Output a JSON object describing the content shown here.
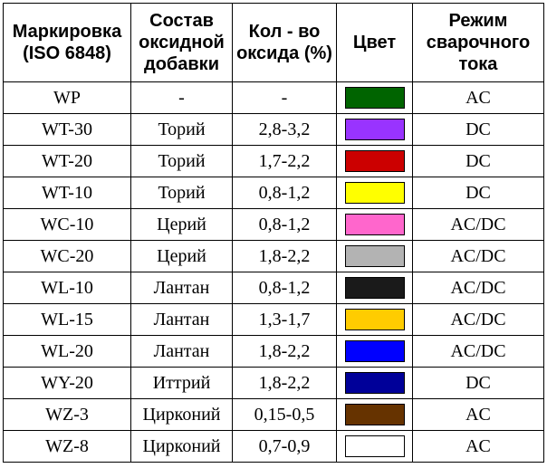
{
  "table": {
    "headers": [
      "Маркировка (ISO 6848)",
      "Состав оксидной добавки",
      "Кол - во оксида (%)",
      "Цвет",
      "Режим сварочного тока"
    ],
    "rows": [
      {
        "marking": "WP",
        "additive": "-",
        "oxide_pct": "-",
        "color_hex": "#006400",
        "current": "AC"
      },
      {
        "marking": "WT-30",
        "additive": "Торий",
        "oxide_pct": "2,8-3,2",
        "color_hex": "#9933ff",
        "current": "DC"
      },
      {
        "marking": "WT-20",
        "additive": "Торий",
        "oxide_pct": "1,7-2,2",
        "color_hex": "#cc0000",
        "current": "DC"
      },
      {
        "marking": "WT-10",
        "additive": "Торий",
        "oxide_pct": "0,8-1,2",
        "color_hex": "#ffff00",
        "current": "DC"
      },
      {
        "marking": "WC-10",
        "additive": "Церий",
        "oxide_pct": "0,8-1,2",
        "color_hex": "#ff66cc",
        "current": "AC/DC"
      },
      {
        "marking": "WC-20",
        "additive": "Церий",
        "oxide_pct": "1,8-2,2",
        "color_hex": "#b3b3b3",
        "current": "AC/DC"
      },
      {
        "marking": "WL-10",
        "additive": "Лантан",
        "oxide_pct": "0,8-1,2",
        "color_hex": "#1a1a1a",
        "current": "AC/DC"
      },
      {
        "marking": "WL-15",
        "additive": "Лантан",
        "oxide_pct": "1,3-1,7",
        "color_hex": "#ffcc00",
        "current": "AC/DC"
      },
      {
        "marking": "WL-20",
        "additive": "Лантан",
        "oxide_pct": "1,8-2,2",
        "color_hex": "#0000ff",
        "current": "AC/DC"
      },
      {
        "marking": "WY-20",
        "additive": "Иттрий",
        "oxide_pct": "1,8-2,2",
        "color_hex": "#000099",
        "current": "DC"
      },
      {
        "marking": "WZ-3",
        "additive": "Цирконий",
        "oxide_pct": "0,15-0,5",
        "color_hex": "#663300",
        "current": "AC"
      },
      {
        "marking": "WZ-8",
        "additive": "Цирконий",
        "oxide_pct": "0,7-0,9",
        "color_hex": "#ffffff",
        "current": "AC"
      }
    ]
  }
}
